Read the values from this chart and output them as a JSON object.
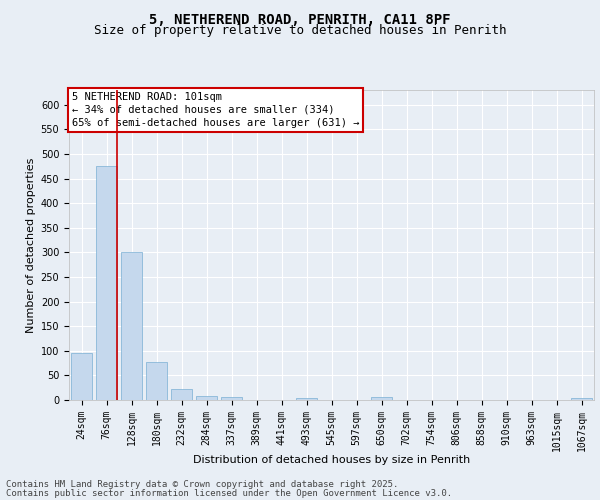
{
  "title_line1": "5, NETHEREND ROAD, PENRITH, CA11 8PF",
  "title_line2": "Size of property relative to detached houses in Penrith",
  "xlabel": "Distribution of detached houses by size in Penrith",
  "ylabel": "Number of detached properties",
  "bar_color": "#c5d8ed",
  "bar_edge_color": "#7aafd4",
  "categories": [
    "24sqm",
    "76sqm",
    "128sqm",
    "180sqm",
    "232sqm",
    "284sqm",
    "337sqm",
    "389sqm",
    "441sqm",
    "493sqm",
    "545sqm",
    "597sqm",
    "650sqm",
    "702sqm",
    "754sqm",
    "806sqm",
    "858sqm",
    "910sqm",
    "963sqm",
    "1015sqm",
    "1067sqm"
  ],
  "values": [
    95,
    475,
    300,
    78,
    22,
    9,
    7,
    0,
    0,
    5,
    0,
    0,
    7,
    0,
    0,
    0,
    0,
    0,
    0,
    0,
    5
  ],
  "ylim": [
    0,
    630
  ],
  "yticks": [
    0,
    50,
    100,
    150,
    200,
    250,
    300,
    350,
    400,
    450,
    500,
    550,
    600
  ],
  "red_line_x": 1,
  "annotation_title": "5 NETHEREND ROAD: 101sqm",
  "annotation_line2": "← 34% of detached houses are smaller (334)",
  "annotation_line3": "65% of semi-detached houses are larger (631) →",
  "annotation_box_color": "#ffffff",
  "annotation_border_color": "#cc0000",
  "footer_line1": "Contains HM Land Registry data © Crown copyright and database right 2025.",
  "footer_line2": "Contains public sector information licensed under the Open Government Licence v3.0.",
  "background_color": "#e8eef5",
  "plot_bg_color": "#e8eef5",
  "grid_color": "#ffffff",
  "title_fontsize": 10,
  "subtitle_fontsize": 9,
  "axis_label_fontsize": 8,
  "tick_fontsize": 7,
  "footer_fontsize": 6.5,
  "annotation_fontsize": 7.5
}
